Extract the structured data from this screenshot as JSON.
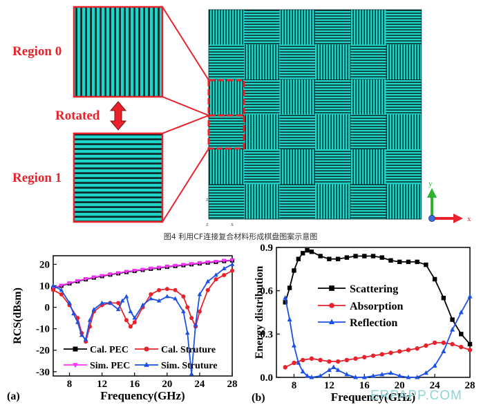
{
  "colors": {
    "accent_red": "#e8212b",
    "pattern_teal": "#1fd6c8",
    "pattern_dark": "#0d2f2f",
    "series_black": "#000000",
    "series_red": "#e8212b",
    "series_magenta": "#ff33ff",
    "series_blue": "#1a50e6"
  },
  "figure": {
    "region0_label": "Region 0",
    "region1_label": "Region 1",
    "rotated_label": "Rotated",
    "axis_y": "y",
    "axis_x": "x",
    "axis_z": "z",
    "corner_z": "z",
    "corner_x": "x",
    "caption": "图4 利用CF连接复合材料形成棋盘图案示意图"
  },
  "watermark": "ERPAPP.COM",
  "chart_data": [
    {
      "type": "line",
      "panel_label": "(a)",
      "xlabel": "Frequency(GHz)",
      "ylabel": "RCS(dBsm)",
      "xlim": [
        6,
        28
      ],
      "ylim": [
        -32,
        24
      ],
      "xticks": [
        8,
        12,
        16,
        20,
        24,
        28
      ],
      "yticks": [
        -30,
        -20,
        -10,
        0,
        10,
        20
      ],
      "legend": "bottom",
      "series": [
        {
          "name": "Cal. PEC",
          "marker": "square",
          "color": "#000000",
          "x": [
            6,
            7,
            8,
            9,
            10,
            11,
            12,
            13,
            14,
            15,
            16,
            17,
            18,
            19,
            20,
            21,
            22,
            23,
            24,
            25,
            26,
            27,
            28
          ],
          "y": [
            8.8,
            10.0,
            11.1,
            12.1,
            13.0,
            13.8,
            14.5,
            15.2,
            15.8,
            16.4,
            16.9,
            17.4,
            17.9,
            18.3,
            18.8,
            19.2,
            19.6,
            20.0,
            20.4,
            20.8,
            21.1,
            21.5,
            21.8
          ]
        },
        {
          "name": "Sim. PEC",
          "marker": "triangle-down",
          "color": "#ff33ff",
          "x": [
            6,
            7,
            8,
            9,
            10,
            11,
            12,
            13,
            14,
            15,
            16,
            17,
            18,
            19,
            20,
            21,
            22,
            23,
            24,
            25,
            26,
            27,
            28
          ],
          "y": [
            9.0,
            10.2,
            11.3,
            12.3,
            13.2,
            14.0,
            14.7,
            15.4,
            16.0,
            16.6,
            17.1,
            17.6,
            18.1,
            18.5,
            19.0,
            19.4,
            19.8,
            20.2,
            20.6,
            21.0,
            21.3,
            21.7,
            22.0
          ]
        },
        {
          "name": "Cal. Struture",
          "marker": "circle",
          "color": "#e8212b",
          "x": [
            6,
            7,
            8,
            9,
            9.5,
            10,
            10.5,
            11,
            12,
            13,
            14,
            15,
            15.5,
            16,
            17,
            18,
            19,
            20,
            21,
            22,
            22.5,
            23,
            23.5,
            24,
            25,
            26,
            27,
            28
          ],
          "y": [
            8,
            6,
            1,
            -5,
            -12,
            -16,
            -9,
            -2,
            1,
            2,
            2,
            -6,
            -9,
            -7,
            0,
            6,
            8,
            8.5,
            8,
            5,
            0,
            -5,
            -9,
            -2,
            8,
            13,
            15,
            17
          ]
        },
        {
          "name": "Sim. Struture",
          "marker": "triangle-up",
          "color": "#1a50e6",
          "x": [
            6,
            7,
            8,
            8.5,
            9,
            9.5,
            10,
            10.5,
            11,
            12,
            13,
            14,
            14.5,
            15,
            15.5,
            16,
            17,
            18,
            19,
            20,
            21,
            22,
            22.5,
            23,
            23.5,
            24,
            25,
            26,
            27,
            28
          ],
          "y": [
            10,
            8,
            2,
            -3,
            -7,
            -13,
            -15,
            -6,
            -1,
            2,
            2,
            -1,
            3,
            5,
            -2,
            -5,
            1,
            4,
            3,
            5,
            4,
            -2,
            -12,
            -31,
            -8,
            6,
            12,
            15,
            18,
            20
          ]
        }
      ]
    },
    {
      "type": "line",
      "panel_label": "(b)",
      "xlabel": "Frequency(GHz)",
      "ylabel": "Energy distribution",
      "xlim": [
        6,
        28
      ],
      "ylim": [
        0,
        0.9
      ],
      "xticks": [
        8,
        12,
        16,
        20,
        24,
        28
      ],
      "yticks": [
        0.0,
        0.3,
        0.6,
        0.9
      ],
      "legend": "upper-middle",
      "series": [
        {
          "name": "Scattering",
          "marker": "square",
          "color": "#000000",
          "x": [
            7,
            7.5,
            8,
            8.5,
            9,
            9.5,
            10,
            11,
            12,
            13,
            14,
            15,
            16,
            17,
            18,
            19,
            20,
            21,
            22,
            23,
            24,
            25,
            26,
            27,
            28
          ],
          "y": [
            0.52,
            0.62,
            0.74,
            0.82,
            0.86,
            0.88,
            0.87,
            0.84,
            0.82,
            0.82,
            0.83,
            0.84,
            0.84,
            0.84,
            0.83,
            0.81,
            0.8,
            0.8,
            0.8,
            0.78,
            0.68,
            0.55,
            0.4,
            0.3,
            0.23
          ]
        },
        {
          "name": "Absorption",
          "marker": "circle",
          "color": "#e8212b",
          "x": [
            7,
            8,
            9,
            10,
            11,
            12,
            13,
            14,
            15,
            16,
            17,
            18,
            19,
            20,
            21,
            22,
            23,
            24,
            25,
            26,
            27,
            28
          ],
          "y": [
            0.07,
            0.1,
            0.12,
            0.13,
            0.12,
            0.11,
            0.11,
            0.12,
            0.13,
            0.14,
            0.15,
            0.16,
            0.17,
            0.18,
            0.19,
            0.2,
            0.22,
            0.24,
            0.24,
            0.23,
            0.21,
            0.19
          ]
        },
        {
          "name": "Reflection",
          "marker": "triangle-up",
          "color": "#1a50e6",
          "x": [
            7,
            7.5,
            8,
            8.5,
            9,
            9.5,
            10,
            11,
            12,
            12.5,
            13,
            14,
            15,
            16,
            17,
            18,
            19,
            20,
            21,
            22,
            23,
            24,
            25,
            26,
            27,
            28
          ],
          "y": [
            0.55,
            0.4,
            0.22,
            0.1,
            0.04,
            0.01,
            0.0,
            0.01,
            0.05,
            0.07,
            0.05,
            0.02,
            0.0,
            0.0,
            0.01,
            0.02,
            0.03,
            0.01,
            0.0,
            0.0,
            0.03,
            0.08,
            0.18,
            0.33,
            0.45,
            0.56
          ]
        }
      ]
    }
  ]
}
